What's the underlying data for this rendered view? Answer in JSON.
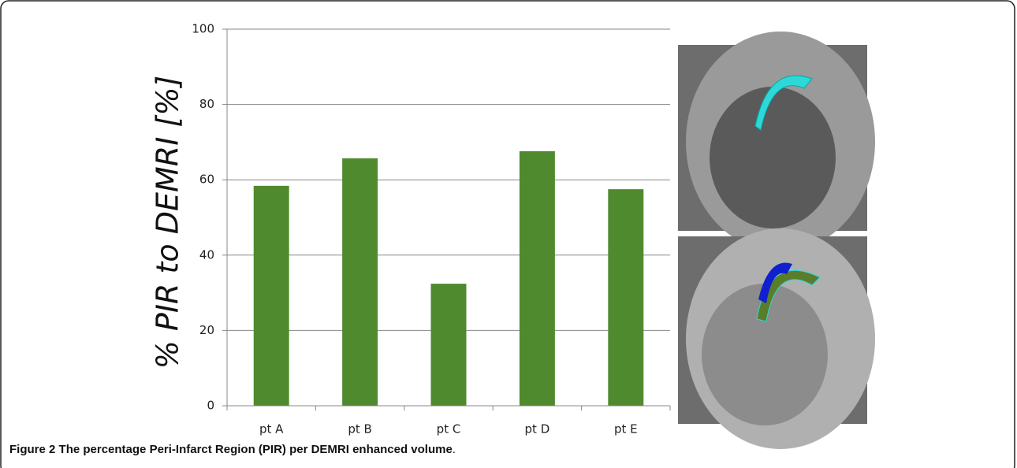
{
  "chart_data": {
    "type": "bar",
    "y_label": "% PIR to DEMRI [%]",
    "categories": [
      "pt A",
      "pt B",
      "pt C",
      "pt D",
      "pt E"
    ],
    "values": [
      58.4,
      65.7,
      32.4,
      67.6,
      57.5
    ],
    "color": "#4f8a2e",
    "ylim": [
      0,
      100
    ],
    "yticks": [
      0,
      20,
      40,
      60,
      80,
      100
    ],
    "grid": true
  },
  "caption": {
    "label": "Figure 2",
    "text": "The percentage Peri-Infarct Region (PIR) per DEMRI enhanced volume",
    "end": "."
  }
}
